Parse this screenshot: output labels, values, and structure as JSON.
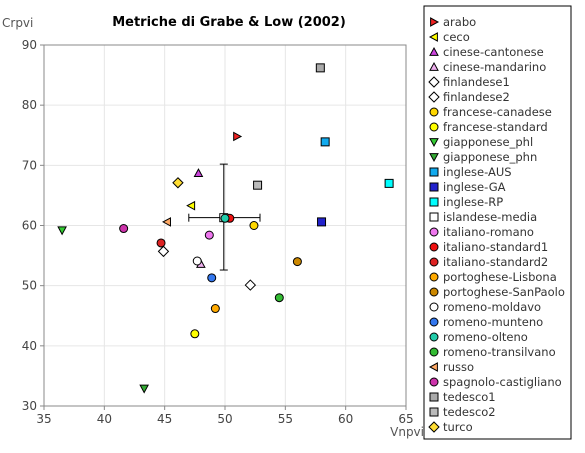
{
  "chart_data": {
    "type": "scatter",
    "title": "Metriche di Grabe & Low (2002)",
    "xlabel": "Vnpvi",
    "ylabel": "Crpvi",
    "xlim": [
      35,
      65
    ],
    "ylim": [
      30,
      90
    ],
    "xticks": [
      35,
      40,
      45,
      50,
      55,
      60,
      65
    ],
    "yticks": [
      30,
      40,
      50,
      60,
      70,
      80,
      90
    ],
    "grid": true,
    "legend_position": "right",
    "error_cross": {
      "x": 49.9,
      "y": 61.3,
      "x_range": [
        47.0,
        52.9
      ],
      "y_range": [
        52.6,
        70.2
      ],
      "color": "#000000"
    },
    "series": [
      {
        "name": "arabo",
        "marker": "triangle-right",
        "color": "#ee2222",
        "x": 51.0,
        "y": 74.8
      },
      {
        "name": "ceco",
        "marker": "triangle-left",
        "color": "#ffff00",
        "x": 47.2,
        "y": 63.3
      },
      {
        "name": "cinese-cantonese",
        "marker": "triangle-up",
        "color": "#cc44dd",
        "x": 47.8,
        "y": 68.7
      },
      {
        "name": "cinese-mandarino",
        "marker": "triangle-up",
        "color": "#f0b0f0",
        "x": 48.0,
        "y": 53.6
      },
      {
        "name": "finlandese1",
        "marker": "diamond",
        "color": "#ffffff",
        "x": 52.1,
        "y": 50.1
      },
      {
        "name": "finlandese2",
        "marker": "diamond",
        "color": "#ffffff",
        "x": 44.9,
        "y": 55.7
      },
      {
        "name": "francese-canadese",
        "marker": "circle",
        "color": "#ffd700",
        "x": 52.4,
        "y": 60.0
      },
      {
        "name": "francese-standard",
        "marker": "circle",
        "color": "#ffff00",
        "x": 47.5,
        "y": 42.0
      },
      {
        "name": "giapponese_phl",
        "marker": "triangle-down",
        "color": "#33cc33",
        "x": 36.5,
        "y": 59.2
      },
      {
        "name": "giapponese_phn",
        "marker": "triangle-down",
        "color": "#33aa33",
        "x": 43.3,
        "y": 32.9
      },
      {
        "name": "inglese-AUS",
        "marker": "square",
        "color": "#11aaee",
        "x": 58.3,
        "y": 73.9
      },
      {
        "name": "inglese-GA",
        "marker": "square",
        "color": "#2222cc",
        "x": 58.0,
        "y": 60.6
      },
      {
        "name": "inglese-RP",
        "marker": "square",
        "color": "#00ffff",
        "x": 63.6,
        "y": 67.0
      },
      {
        "name": "islandese-media",
        "marker": "square",
        "color": "#ffffff",
        "x": 49.9,
        "y": 61.3
      },
      {
        "name": "italiano-romano",
        "marker": "circle",
        "color": "#ee77ee",
        "x": 48.7,
        "y": 58.4
      },
      {
        "name": "italiano-standard1",
        "marker": "circle",
        "color": "#ee1111",
        "x": 50.4,
        "y": 61.2
      },
      {
        "name": "italiano-standard2",
        "marker": "circle",
        "color": "#dd2222",
        "x": 44.7,
        "y": 57.1
      },
      {
        "name": "portoghese-Lisbona",
        "marker": "circle",
        "color": "#ffaa00",
        "x": 49.2,
        "y": 46.2
      },
      {
        "name": "portoghese-SanPaolo",
        "marker": "circle",
        "color": "#cc8800",
        "x": 56.0,
        "y": 54.0
      },
      {
        "name": "romeno-moldavo",
        "marker": "circle",
        "color": "#ffffff",
        "x": 47.7,
        "y": 54.1
      },
      {
        "name": "romeno-munteno",
        "marker": "circle",
        "color": "#3377ee",
        "x": 48.9,
        "y": 51.3
      },
      {
        "name": "romeno-olteno",
        "marker": "circle",
        "color": "#22ccaa",
        "x": 50.0,
        "y": 61.2
      },
      {
        "name": "romeno-transilvano",
        "marker": "circle",
        "color": "#33bb33",
        "x": 54.5,
        "y": 48.0
      },
      {
        "name": "russo",
        "marker": "triangle-left",
        "color": "#ffaa66",
        "x": 45.2,
        "y": 60.6
      },
      {
        "name": "spagnolo-castigliano",
        "marker": "circle",
        "color": "#cc33aa",
        "x": 41.6,
        "y": 59.5
      },
      {
        "name": "tedesco1",
        "marker": "square",
        "color": "#aaaaaa",
        "x": 57.9,
        "y": 86.2
      },
      {
        "name": "tedesco2",
        "marker": "square",
        "color": "#bbbbbb",
        "x": 52.7,
        "y": 66.7
      },
      {
        "name": "turco",
        "marker": "diamond",
        "color": "#ffdd33",
        "x": 46.1,
        "y": 67.1
      }
    ]
  }
}
